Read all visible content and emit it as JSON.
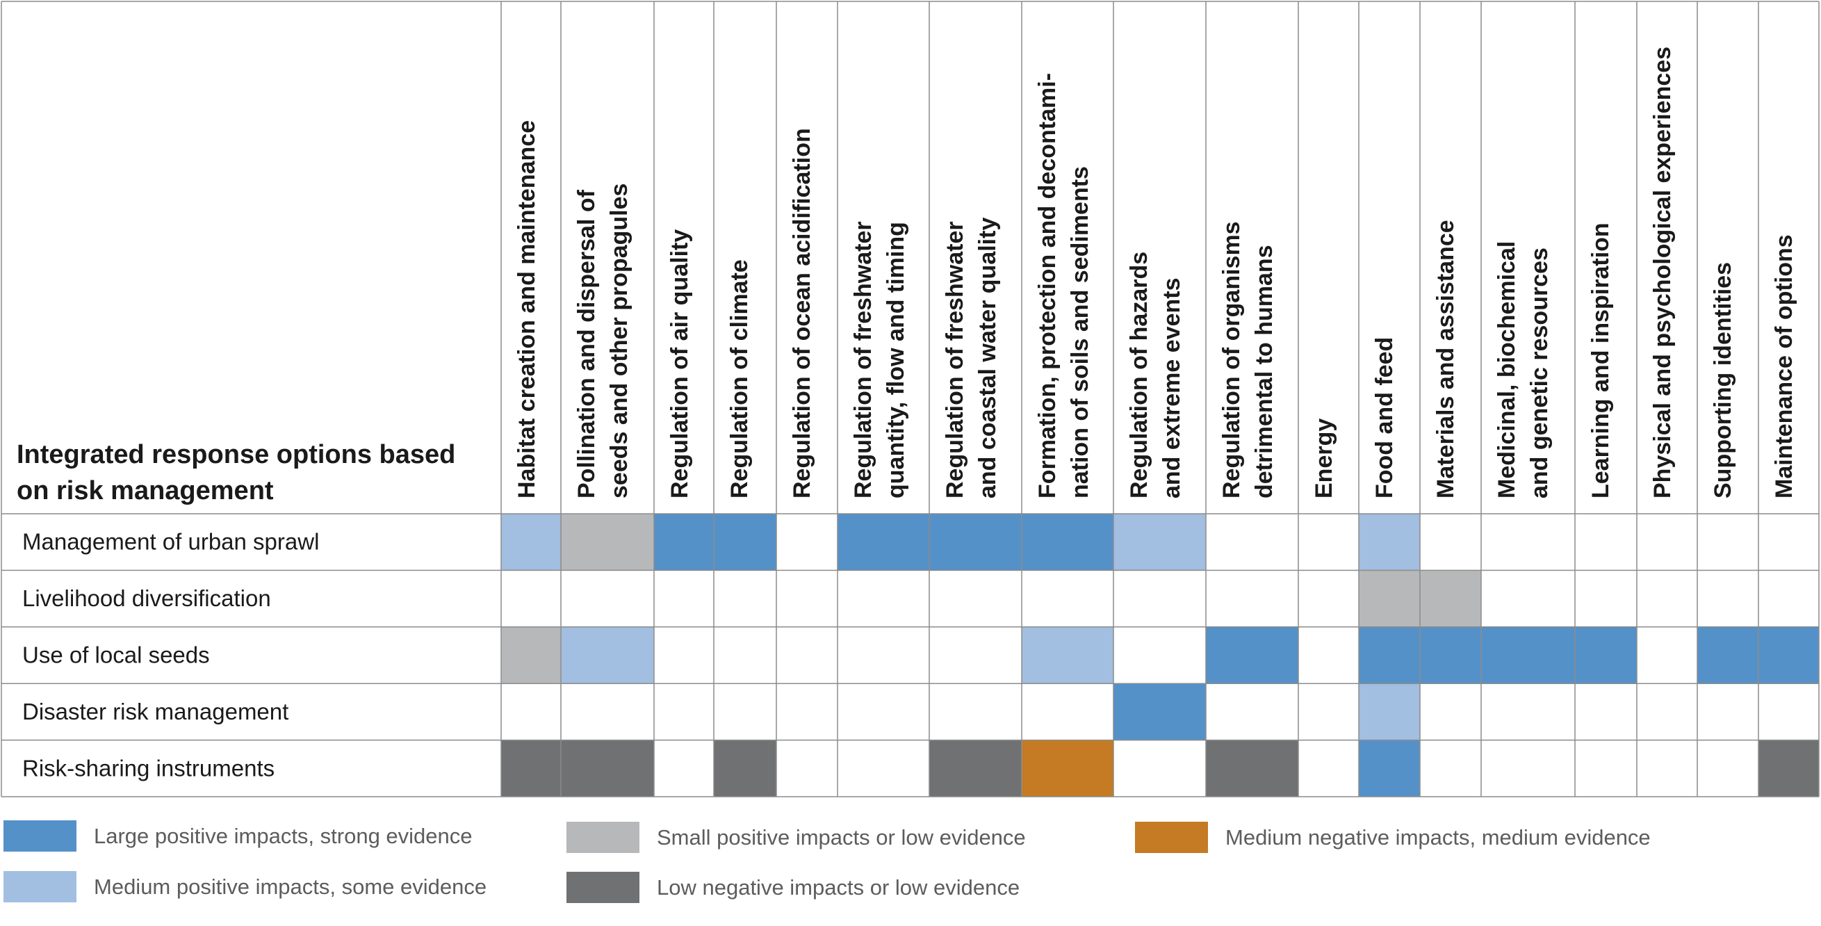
{
  "colors": {
    "large_positive_strong": "#5591c9",
    "medium_positive_some": "#a2bee0",
    "small_positive_low": "#b7b8ba",
    "low_negative_low": "#707173",
    "medium_negative_medium": "#c57a24",
    "none": "#ffffff",
    "grid": "#8c8c8c"
  },
  "chart_data": {
    "type": "heatmap",
    "row_header": "Integrated response options based on risk management",
    "columns": [
      "Habitat creation and maintenance",
      "Pollination and dispersal of seeds and other propagules",
      "Regulation of air quality",
      "Regulation of climate",
      "Regulation of ocean acidification",
      "Regulation of freshwater quantity, flow and timing",
      "Regulation of freshwater and coastal water quality",
      "Formation, protection and decontamination of soils and sediments",
      "Regulation of hazards and extreme events",
      "Regulation of organisms detrimental to humans",
      "Energy",
      "Food and feed",
      "Materials and assistance",
      "Medicinal, biochemical and genetic resources",
      "Learning and inspiration",
      "Physical and psychological experiences",
      "Supporting identities",
      "Maintenance of options"
    ],
    "column_display_lines": [
      [
        "Habitat creation and maintenance"
      ],
      [
        "Pollination and dispersal of",
        "seeds and other propagules"
      ],
      [
        "Regulation of air quality"
      ],
      [
        "Regulation of climate"
      ],
      [
        "Regulation of ocean acidification"
      ],
      [
        "Regulation of freshwater",
        "quantity, flow and timing"
      ],
      [
        "Regulation of freshwater",
        "and coastal water quality"
      ],
      [
        "Formation, protection and decontami-",
        "nation of soils and sediments"
      ],
      [
        "Regulation of hazards",
        "and extreme events"
      ],
      [
        "Regulation of organisms",
        "detrimental to humans"
      ],
      [
        "Energy"
      ],
      [
        "Food and feed"
      ],
      [
        "Materials and assistance"
      ],
      [
        "Medicinal, biochemical",
        "and genetic resources"
      ],
      [
        "Learning and inspiration"
      ],
      [
        "Physical and psychological experiences"
      ],
      [
        "Supporting identities"
      ],
      [
        "Maintenance of options"
      ]
    ],
    "rows": [
      {
        "label": "Management of urban sprawl",
        "values": [
          "medium_positive_some",
          "small_positive_low",
          "large_positive_strong",
          "large_positive_strong",
          "none",
          "large_positive_strong",
          "large_positive_strong",
          "large_positive_strong",
          "medium_positive_some",
          "none",
          "none",
          "medium_positive_some",
          "none",
          "none",
          "none",
          "none",
          "none",
          "none"
        ]
      },
      {
        "label": "Livelihood diversification",
        "values": [
          "none",
          "none",
          "none",
          "none",
          "none",
          "none",
          "none",
          "none",
          "none",
          "none",
          "none",
          "small_positive_low",
          "small_positive_low",
          "none",
          "none",
          "none",
          "none",
          "none"
        ]
      },
      {
        "label": "Use of local seeds",
        "values": [
          "small_positive_low",
          "medium_positive_some",
          "none",
          "none",
          "none",
          "none",
          "none",
          "medium_positive_some",
          "none",
          "large_positive_strong",
          "none",
          "large_positive_strong",
          "large_positive_strong",
          "large_positive_strong",
          "large_positive_strong",
          "none",
          "large_positive_strong",
          "large_positive_strong"
        ]
      },
      {
        "label": "Disaster risk management",
        "values": [
          "none",
          "none",
          "none",
          "none",
          "none",
          "none",
          "none",
          "none",
          "large_positive_strong",
          "none",
          "none",
          "medium_positive_some",
          "none",
          "none",
          "none",
          "none",
          "none",
          "none"
        ]
      },
      {
        "label": "Risk-sharing instruments",
        "values": [
          "low_negative_low",
          "low_negative_low",
          "none",
          "low_negative_low",
          "none",
          "none",
          "low_negative_low",
          "medium_negative_medium",
          "none",
          "low_negative_low",
          "none",
          "large_positive_strong",
          "none",
          "none",
          "none",
          "none",
          "none",
          "low_negative_low"
        ]
      }
    ],
    "legend": [
      {
        "key": "large_positive_strong",
        "label": "Large positive impacts, strong evidence"
      },
      {
        "key": "medium_positive_some",
        "label": "Medium positive impacts, some evidence"
      },
      {
        "key": "small_positive_low",
        "label": "Small positive impacts or low evidence"
      },
      {
        "key": "low_negative_low",
        "label": "Low negative impacts or low evidence"
      },
      {
        "key": "medium_negative_medium",
        "label": "Medium negative impacts, medium evidence"
      }
    ]
  }
}
